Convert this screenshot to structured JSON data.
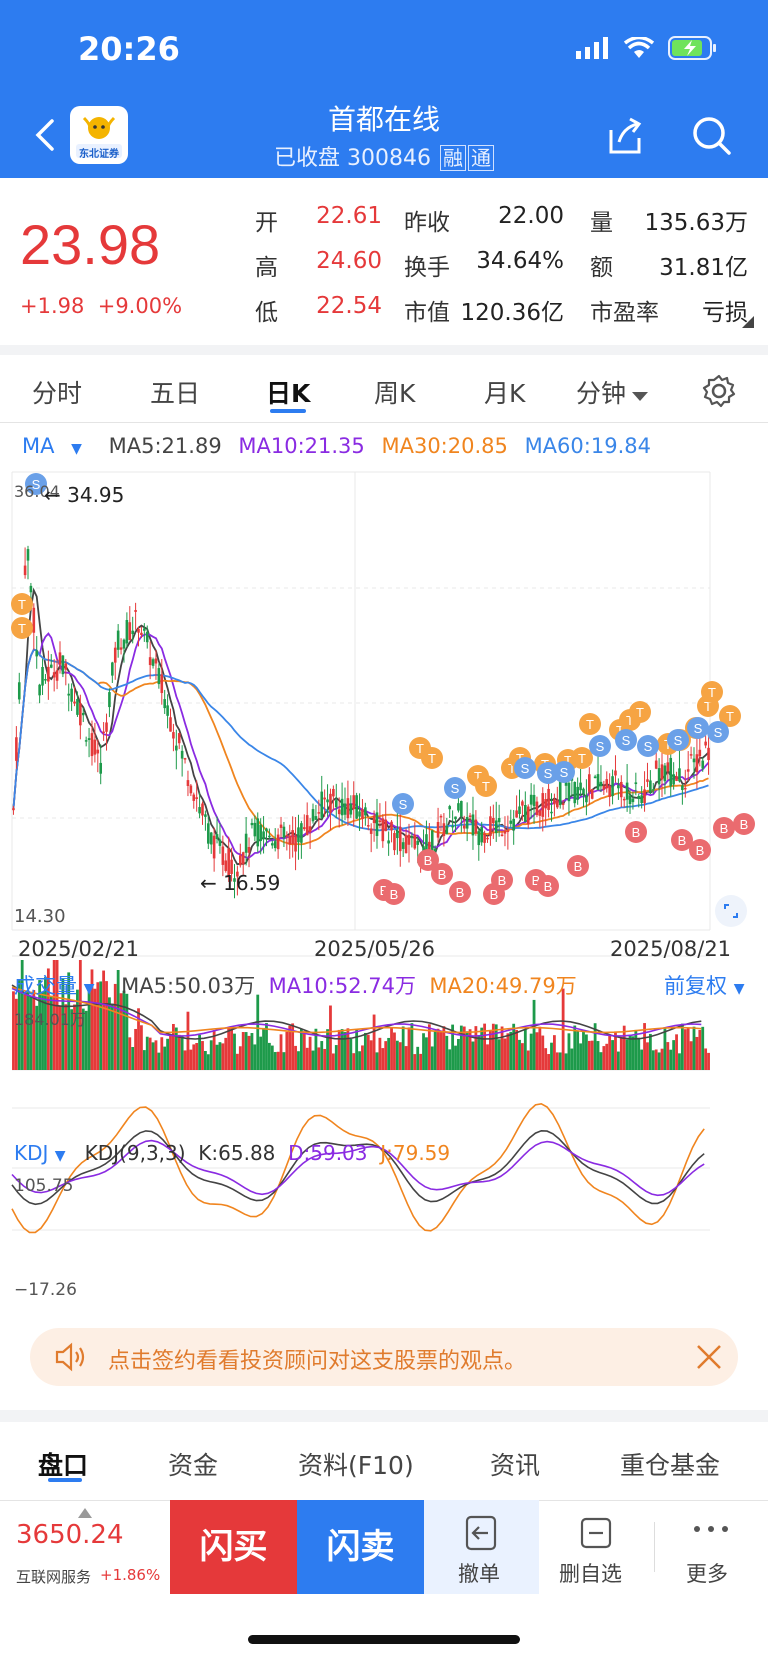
{
  "status_bar": {
    "time": "20:26"
  },
  "header": {
    "title": "首都在线",
    "subtitle": "已收盘 300846",
    "tag_margin": "融",
    "tag_connect": "通",
    "logo_text": "东北证券"
  },
  "quote": {
    "price": "23.98",
    "change": "+1.98",
    "change_pct": "+9.00%",
    "fields": [
      {
        "label": "开",
        "value": "22.61"
      },
      {
        "label": "高",
        "value": "24.60"
      },
      {
        "label": "低",
        "value": "22.54"
      },
      {
        "label": "昨收",
        "value": "22.00"
      },
      {
        "label": "换手",
        "value": "34.64%"
      },
      {
        "label": "市值",
        "value": "120.36亿"
      },
      {
        "label": "量",
        "value": "135.63万"
      },
      {
        "label": "额",
        "value": "31.81亿"
      },
      {
        "label": "市盈率",
        "value": "亏损"
      }
    ]
  },
  "tabs": [
    "分时",
    "五日",
    "日K",
    "周K",
    "月K",
    "分钟"
  ],
  "active_tab": "日K",
  "ma_legend": {
    "label": "MA",
    "ma5": "MA5:21.89",
    "ma10": "MA10:21.35",
    "ma30": "MA30:20.85",
    "ma60": "MA60:19.84"
  },
  "colors": {
    "accent": "#2d7cf0",
    "up": "#e5393a",
    "down": "#1d9a4a",
    "ma5": "#444444",
    "ma10": "#8a2be2",
    "ma30": "#f0851f",
    "ma60": "#3a86e8"
  },
  "chart_data": {
    "type": "candlestick",
    "price_range": [
      14.3,
      36.04
    ],
    "y_top_label": "36.04",
    "y_bottom_label": "14.30",
    "max_label": "34.95",
    "min_label": "16.59",
    "dates": [
      "2025/02/21",
      "2025/05/26",
      "2025/08/21"
    ]
  },
  "volume": {
    "label": "成交量",
    "ma5": "MA5:50.03万",
    "ma10": "MA10:52.74万",
    "ma20": "MA20:49.79万",
    "top_label": "184.01万",
    "adjust": "前复权"
  },
  "kdj": {
    "label": "KDJ",
    "params": "KDJ(9,3,3)",
    "k": "K:65.88",
    "d": "D:59.03",
    "j": "J:79.59",
    "top": "105.75",
    "bottom": "−17.26"
  },
  "banner": {
    "text": "点击签约看看投资顾问对这支股票的观点。"
  },
  "bottom_tabs": [
    "盘口",
    "资金",
    "资料(F10)",
    "资讯",
    "重仓基金"
  ],
  "index": {
    "value": "3650.24",
    "name": "互联网服务",
    "change": "+1.86%"
  },
  "actions": {
    "buy": "闪买",
    "sell": "闪卖",
    "cancel": "撤单",
    "remove_fav": "删自选",
    "more": "更多"
  }
}
